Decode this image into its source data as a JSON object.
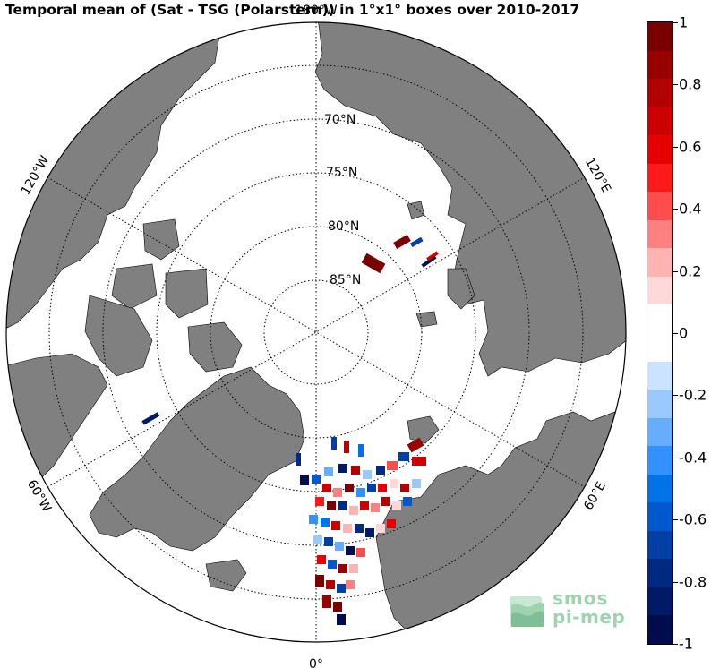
{
  "title": "Temporal mean of (Sat - TSG (Polarstern)) in 1°x1° boxes over 2010-2017",
  "map": {
    "projection": "north-polar-stereographic",
    "lat_labels": [
      "70°N",
      "75°N",
      "80°N",
      "85°N"
    ],
    "lon_labels": {
      "top": "180°W",
      "upper_left": "120°W",
      "upper_right": "120°E",
      "lower_left": "60°W",
      "lower_right": "60°E",
      "bottom": "0°"
    },
    "colors": {
      "land": "#808080",
      "ocean": "#ffffff",
      "graticule": "#000000"
    }
  },
  "colorbar": {
    "min": -1,
    "max": 1,
    "ticks": [
      "1",
      "0.8",
      "0.6",
      "0.4",
      "0.2",
      "0",
      "-0.2",
      "-0.4",
      "-0.6",
      "-0.8",
      "-1"
    ],
    "colors": [
      "#7a0000",
      "#990000",
      "#b30000",
      "#cc0000",
      "#e60000",
      "#ff1a1a",
      "#ff4d4d",
      "#ff8080",
      "#ffb3b3",
      "#ffd9d9",
      "#ffffff",
      "#ffffff",
      "#cce3ff",
      "#99c9ff",
      "#66adff",
      "#3391ff",
      "#0073e6",
      "#0059cc",
      "#0040a6",
      "#002a80",
      "#001a66",
      "#000c4d"
    ]
  },
  "logo": {
    "line1": "smos",
    "line2": "pi-mep",
    "color": "#9fd3b0"
  }
}
